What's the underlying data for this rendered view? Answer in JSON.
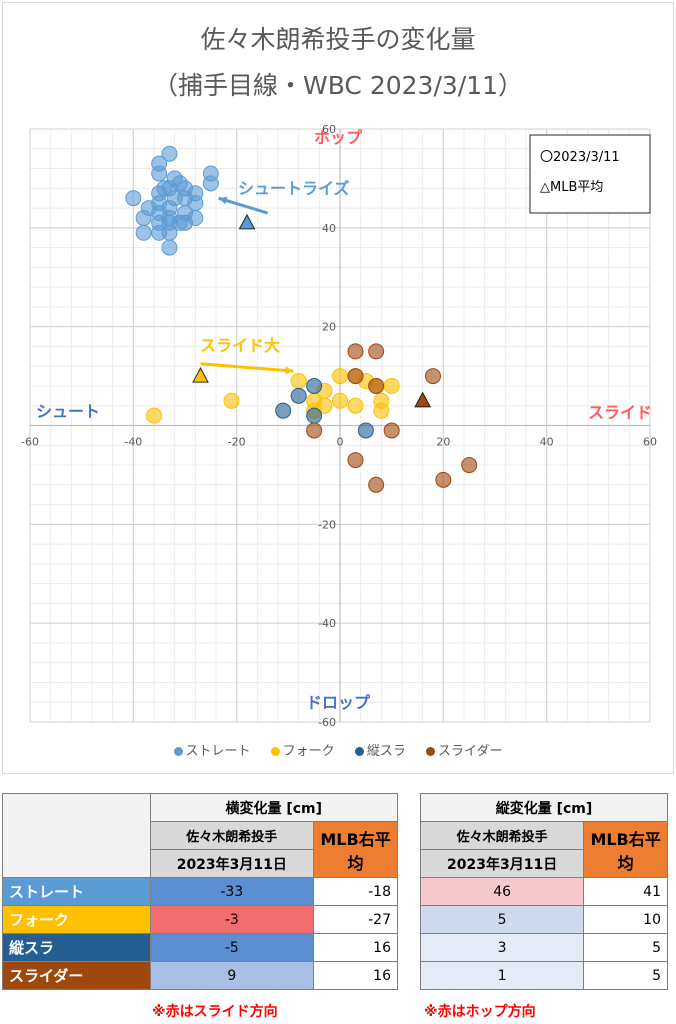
{
  "title_line1": "佐々木朗希投手の変化量",
  "title_line2": "（捕手目線・WBC 2023/3/11）",
  "chart_data": {
    "type": "scatter",
    "xlim": [
      -60,
      60
    ],
    "ylim": [
      -60,
      60
    ],
    "x_ticks": [
      "-60",
      "-40",
      "-20",
      "0",
      "20",
      "40",
      "60"
    ],
    "y_ticks": [
      "60",
      "40",
      "20",
      "-20",
      "-40",
      "-60"
    ],
    "grid": true,
    "legend_position": "bottom",
    "legend_box": [
      "〇2023/3/11",
      "△MLB平均"
    ],
    "annotations": {
      "hop": "ホップ",
      "drop": "ドロップ",
      "shoot": "シュート",
      "slide": "スライド",
      "shoot_rise": "シュートライズ",
      "slide_big": "スライド大"
    },
    "series": [
      {
        "name": "ストレート",
        "color": "#5b9bd5",
        "points": [
          [
            -33,
            55
          ],
          [
            -35,
            53
          ],
          [
            -35,
            51
          ],
          [
            -32,
            50
          ],
          [
            -31,
            49
          ],
          [
            -25,
            51
          ],
          [
            -25,
            49
          ],
          [
            -34,
            48
          ],
          [
            -33,
            48
          ],
          [
            -30,
            48
          ],
          [
            -28,
            47
          ],
          [
            -35,
            47
          ],
          [
            -32,
            46
          ],
          [
            -30,
            46
          ],
          [
            -28,
            45
          ],
          [
            -40,
            46
          ],
          [
            -37,
            44
          ],
          [
            -35,
            45
          ],
          [
            -33,
            44
          ],
          [
            -30,
            43
          ],
          [
            -35,
            43
          ],
          [
            -38,
            42
          ],
          [
            -33,
            42
          ],
          [
            -28,
            42
          ],
          [
            -35,
            41
          ],
          [
            -33,
            41
          ],
          [
            -31,
            41
          ],
          [
            -30,
            41
          ],
          [
            -38,
            39
          ],
          [
            -35,
            39
          ],
          [
            -33,
            39
          ],
          [
            -33,
            36
          ]
        ],
        "mlb": [
          -18,
          41
        ]
      },
      {
        "name": "フォーク",
        "color": "#ffc000",
        "points": [
          [
            -36,
            2
          ],
          [
            -21,
            5
          ],
          [
            -8,
            9
          ],
          [
            -5,
            5
          ],
          [
            -3,
            7
          ],
          [
            -5,
            3
          ],
          [
            -3,
            4
          ],
          [
            0,
            5
          ],
          [
            3,
            4
          ],
          [
            0,
            10
          ],
          [
            3,
            10
          ],
          [
            5,
            9
          ],
          [
            7,
            8
          ],
          [
            8,
            5
          ],
          [
            8,
            3
          ],
          [
            10,
            8
          ]
        ],
        "mlb": [
          -27,
          10
        ]
      },
      {
        "name": "縦スラ",
        "color": "#255e91",
        "points": [
          [
            -11,
            3
          ],
          [
            -8,
            6
          ],
          [
            -5,
            8
          ],
          [
            -5,
            2
          ],
          [
            5,
            -1
          ]
        ],
        "mlb": [
          16,
          5
        ]
      },
      {
        "name": "スライダー",
        "color": "#9e480e",
        "points": [
          [
            3,
            15
          ],
          [
            7,
            15
          ],
          [
            3,
            10
          ],
          [
            7,
            8
          ],
          [
            18,
            10
          ],
          [
            -5,
            -1
          ],
          [
            10,
            -1
          ],
          [
            3,
            -7
          ],
          [
            7,
            -12
          ],
          [
            20,
            -11
          ],
          [
            25,
            -8
          ]
        ],
        "mlb": [
          16,
          5
        ]
      }
    ]
  },
  "horiz_table": {
    "header": "横変化量 [cm]",
    "sub1": "佐々木朗希投手",
    "sub2": "2023年3月11日",
    "mlb": "MLB右平均",
    "rows": [
      {
        "label": "ストレート",
        "val": "-33",
        "mlb": "-18"
      },
      {
        "label": "フォーク",
        "val": "-3",
        "mlb": "-27"
      },
      {
        "label": "縦スラ",
        "val": "-5",
        "mlb": "16"
      },
      {
        "label": "スライダー",
        "val": "9",
        "mlb": "16"
      }
    ],
    "note": "※赤はスライド方向"
  },
  "vert_table": {
    "header": "縦変化量 [cm]",
    "sub1": "佐々木朗希投手",
    "sub2": "2023年3月11日",
    "mlb": "MLB右平均",
    "rows": [
      {
        "val": "46",
        "mlb": "41"
      },
      {
        "val": "5",
        "mlb": "10"
      },
      {
        "val": "3",
        "mlb": "5"
      },
      {
        "val": "1",
        "mlb": "5"
      }
    ],
    "note": "※赤はホップ方向"
  }
}
